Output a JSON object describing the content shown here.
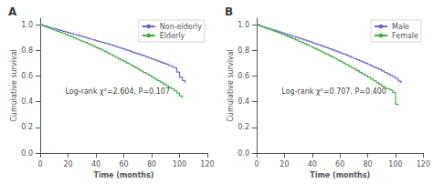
{
  "chart_data": [
    {
      "type": "step",
      "title": "A",
      "xlabel": "Time (months)",
      "ylabel": "Cumulative survival",
      "annotations": [
        {
          "text": "Log-rank χ²=2.604, P=0.107",
          "x": 18,
          "y": 0.48
        }
      ],
      "xlim": [
        0,
        120
      ],
      "ylim": [
        0.0,
        1.05
      ],
      "xticks": [
        0,
        20,
        40,
        60,
        80,
        100,
        120
      ],
      "yticks": [
        {
          "value": 0.0,
          "label": "0.0"
        },
        0.2,
        0.4,
        0.6,
        0.8,
        {
          "value": 1.0,
          "label": "1.0"
        }
      ],
      "grid": false,
      "legend": "upper right",
      "series": [
        {
          "name": "Non-elderly",
          "color": "#6666cc",
          "x": [
            0,
            2,
            4,
            6,
            8,
            10,
            12,
            14,
            16,
            18,
            20,
            22,
            24,
            26,
            28,
            30,
            32,
            34,
            36,
            38,
            40,
            42,
            44,
            46,
            48,
            50,
            52,
            54,
            56,
            58,
            60,
            62,
            64,
            66,
            68,
            70,
            72,
            74,
            76,
            78,
            80,
            82,
            84,
            86,
            88,
            90,
            92,
            94,
            96,
            98,
            100,
            102,
            104
          ],
          "values": [
            1.0,
            0.99,
            0.985,
            0.978,
            0.972,
            0.967,
            0.961,
            0.955,
            0.948,
            0.942,
            0.936,
            0.93,
            0.924,
            0.918,
            0.912,
            0.906,
            0.9,
            0.893,
            0.887,
            0.88,
            0.874,
            0.868,
            0.862,
            0.856,
            0.85,
            0.843,
            0.836,
            0.829,
            0.822,
            0.815,
            0.808,
            0.801,
            0.793,
            0.785,
            0.778,
            0.77,
            0.763,
            0.756,
            0.748,
            0.74,
            0.732,
            0.724,
            0.716,
            0.708,
            0.7,
            0.692,
            0.683,
            0.674,
            0.665,
            0.63,
            0.59,
            0.565,
            0.545
          ]
        },
        {
          "name": "Elderly",
          "color": "#44aa44",
          "x": [
            0,
            2,
            4,
            6,
            8,
            10,
            12,
            14,
            16,
            18,
            20,
            22,
            24,
            26,
            28,
            30,
            32,
            34,
            36,
            38,
            40,
            42,
            44,
            46,
            48,
            50,
            52,
            54,
            56,
            58,
            60,
            62,
            64,
            66,
            68,
            70,
            72,
            74,
            76,
            78,
            80,
            82,
            84,
            86,
            88,
            90,
            92,
            94,
            96,
            98,
            100,
            102
          ],
          "values": [
            1.0,
            0.988,
            0.98,
            0.972,
            0.964,
            0.956,
            0.948,
            0.94,
            0.931,
            0.922,
            0.913,
            0.905,
            0.896,
            0.887,
            0.878,
            0.869,
            0.861,
            0.851,
            0.841,
            0.831,
            0.821,
            0.811,
            0.8,
            0.79,
            0.779,
            0.768,
            0.757,
            0.745,
            0.734,
            0.723,
            0.712,
            0.7,
            0.688,
            0.676,
            0.664,
            0.652,
            0.64,
            0.628,
            0.616,
            0.604,
            0.591,
            0.578,
            0.565,
            0.552,
            0.539,
            0.526,
            0.513,
            0.5,
            0.486,
            0.468,
            0.445,
            0.43
          ]
        }
      ]
    },
    {
      "type": "step",
      "title": "B",
      "xlabel": "Time (months)",
      "ylabel": "Cumulative survival",
      "annotations": [
        {
          "text": "Log-rank χ²=0.707, P=0.400",
          "x": 18,
          "y": 0.48
        }
      ],
      "xlim": [
        0,
        120
      ],
      "ylim": [
        0.0,
        1.05
      ],
      "xticks": [
        0,
        20,
        40,
        60,
        80,
        100,
        120
      ],
      "yticks": [
        {
          "value": 0.0,
          "label": "0.0"
        },
        0.2,
        0.4,
        0.6,
        0.8,
        {
          "value": 1.0,
          "label": "1.0"
        }
      ],
      "grid": false,
      "legend": "upper right",
      "series": [
        {
          "name": "Male",
          "color": "#6666cc",
          "x": [
            0,
            2,
            4,
            6,
            8,
            10,
            12,
            14,
            16,
            18,
            20,
            22,
            24,
            26,
            28,
            30,
            32,
            34,
            36,
            38,
            40,
            42,
            44,
            46,
            48,
            50,
            52,
            54,
            56,
            58,
            60,
            62,
            64,
            66,
            68,
            70,
            72,
            74,
            76,
            78,
            80,
            82,
            84,
            86,
            88,
            90,
            92,
            94,
            96,
            98,
            100,
            102,
            104
          ],
          "values": [
            1.0,
            0.99,
            0.984,
            0.977,
            0.97,
            0.963,
            0.957,
            0.95,
            0.943,
            0.936,
            0.929,
            0.922,
            0.915,
            0.908,
            0.902,
            0.895,
            0.888,
            0.88,
            0.873,
            0.866,
            0.858,
            0.851,
            0.844,
            0.836,
            0.828,
            0.82,
            0.812,
            0.804,
            0.796,
            0.788,
            0.78,
            0.772,
            0.763,
            0.754,
            0.745,
            0.736,
            0.727,
            0.718,
            0.709,
            0.7,
            0.69,
            0.68,
            0.67,
            0.66,
            0.65,
            0.639,
            0.628,
            0.617,
            0.606,
            0.594,
            0.58,
            0.56,
            0.545
          ]
        },
        {
          "name": "Female",
          "color": "#44aa44",
          "x": [
            0,
            2,
            4,
            6,
            8,
            10,
            12,
            14,
            16,
            18,
            20,
            22,
            24,
            26,
            28,
            30,
            32,
            34,
            36,
            38,
            40,
            42,
            44,
            46,
            48,
            50,
            52,
            54,
            56,
            58,
            60,
            62,
            64,
            66,
            68,
            70,
            72,
            74,
            76,
            78,
            80,
            82,
            84,
            86,
            88,
            90,
            92,
            94,
            96,
            98,
            100,
            102
          ],
          "values": [
            1.0,
            0.989,
            0.981,
            0.973,
            0.966,
            0.958,
            0.95,
            0.942,
            0.933,
            0.924,
            0.916,
            0.907,
            0.898,
            0.889,
            0.88,
            0.871,
            0.862,
            0.852,
            0.842,
            0.832,
            0.822,
            0.812,
            0.801,
            0.791,
            0.78,
            0.769,
            0.758,
            0.747,
            0.736,
            0.724,
            0.713,
            0.701,
            0.689,
            0.677,
            0.665,
            0.653,
            0.641,
            0.629,
            0.617,
            0.604,
            0.591,
            0.578,
            0.564,
            0.55,
            0.536,
            0.521,
            0.506,
            0.5,
            0.49,
            0.472,
            0.38,
            0.37
          ]
        }
      ]
    }
  ]
}
